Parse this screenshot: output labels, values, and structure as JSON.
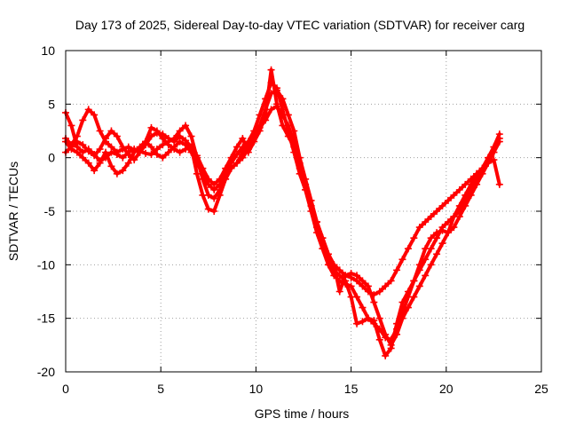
{
  "chart_data": {
    "type": "scatter",
    "title": "Day 173 of 2025, Sidereal Day-to-day VTEC variation (SDTVAR) for receiver carg",
    "xlabel": "GPS time / hours",
    "ylabel": "SDTVAR / TECUs",
    "xlim": [
      0,
      25
    ],
    "ylim": [
      -20,
      10
    ],
    "xticks": [
      "0",
      "5",
      "10",
      "15",
      "20",
      "25"
    ],
    "yticks": [
      "-20",
      "-15",
      "-10",
      "-5",
      "0",
      "5",
      "10"
    ],
    "grid": true,
    "marker": "plus",
    "colors": {
      "series": "#ff0000",
      "grid": "#a0a0a0",
      "frame": "#000000"
    },
    "series": [
      {
        "x": [
          0.0,
          0.3,
          0.6,
          0.9,
          1.2,
          1.5,
          1.8,
          2.1,
          2.4,
          2.7,
          3.0,
          3.3,
          3.6,
          3.9,
          4.2,
          4.5,
          4.8,
          5.1,
          5.4,
          5.7,
          6.0,
          6.3,
          6.6,
          6.9,
          7.2,
          7.5,
          7.8,
          8.1,
          8.4,
          8.7,
          9.0,
          9.3,
          9.6,
          9.9,
          10.2,
          10.5,
          10.8,
          11.1,
          11.4,
          11.7,
          12.0,
          12.3,
          12.6,
          12.9,
          13.2,
          13.5,
          13.8,
          14.1,
          14.4,
          14.7,
          15.0,
          15.3,
          15.6,
          15.9,
          16.2,
          16.5,
          16.8,
          17.1,
          17.4,
          17.7,
          18.0,
          18.3,
          18.6,
          18.9,
          19.2,
          19.5,
          19.8,
          20.1,
          20.4,
          20.7,
          21.0,
          21.3,
          21.6,
          21.9,
          22.2,
          22.5,
          22.8
        ],
        "y": [
          1.8,
          1.2,
          2.0,
          3.5,
          4.5,
          4.0,
          2.5,
          1.5,
          1.0,
          0.5,
          0.8,
          1.0,
          0.7,
          0.5,
          1.2,
          2.0,
          2.3,
          2.2,
          1.8,
          1.5,
          2.0,
          1.6,
          1.0,
          -1.5,
          -3.5,
          -4.8,
          -5.0,
          -3.5,
          -2.0,
          -1.0,
          -0.5,
          0.5,
          1.5,
          2.5,
          4.0,
          5.5,
          7.0,
          6.5,
          4.5,
          2.5,
          0.5,
          -1.5,
          -3.0,
          -4.5,
          -6.0,
          -7.5,
          -9.0,
          -10.0,
          -10.5,
          -11.0,
          -11.2,
          -11.5,
          -12.0,
          -12.5,
          -12.8,
          -12.5,
          -12.0,
          -11.5,
          -10.5,
          -9.5,
          -8.5,
          -7.5,
          -6.5,
          -6.0,
          -5.5,
          -5.0,
          -4.5,
          -4.0,
          -3.5,
          -3.0,
          -2.5,
          -2.0,
          -1.5,
          -1.0,
          -0.5,
          0.5,
          1.5
        ]
      },
      {
        "x": [
          0.0,
          0.3,
          0.6,
          0.9,
          1.2,
          1.5,
          1.8,
          2.1,
          2.4,
          2.7,
          3.0,
          3.3,
          3.6,
          3.9,
          4.2,
          4.5,
          4.8,
          5.1,
          5.4,
          5.7,
          6.0,
          6.3,
          6.6,
          6.9,
          7.2,
          7.5,
          7.8,
          8.1,
          8.4,
          8.7,
          9.0,
          9.3,
          9.6,
          9.9,
          10.2,
          10.5,
          10.8,
          11.1,
          11.4,
          11.7,
          12.0,
          12.3,
          12.6,
          12.9,
          13.2,
          13.5,
          13.8,
          14.1,
          14.4,
          14.7,
          15.0,
          15.3,
          15.6,
          15.9,
          16.2,
          16.5,
          16.8,
          17.1,
          17.4,
          17.7,
          18.0,
          18.3,
          18.6,
          18.9,
          19.2,
          19.5,
          19.8,
          20.1,
          20.4,
          20.7,
          21.0,
          21.3,
          21.6,
          21.9,
          22.2,
          22.5,
          22.8
        ],
        "y": [
          4.2,
          3.0,
          1.0,
          0.5,
          0.8,
          0.3,
          -0.3,
          0.0,
          0.5,
          0.3,
          0.0,
          0.5,
          0.8,
          0.6,
          0.4,
          0.3,
          0.8,
          1.2,
          1.5,
          1.8,
          2.5,
          3.0,
          2.0,
          0.0,
          -2.0,
          -3.5,
          -3.8,
          -3.0,
          -2.0,
          -1.0,
          -0.5,
          0.0,
          0.8,
          2.0,
          3.0,
          4.5,
          6.0,
          6.3,
          5.5,
          4.0,
          2.5,
          0.0,
          -2.0,
          -4.0,
          -6.0,
          -7.5,
          -9.0,
          -10.0,
          -12.5,
          -11.0,
          -10.8,
          -11.0,
          -11.5,
          -12.0,
          -13.5,
          -15.0,
          -16.5,
          -17.5,
          -16.5,
          -15.0,
          -14.0,
          -13.0,
          -12.0,
          -11.0,
          -10.0,
          -9.0,
          -8.0,
          -7.0,
          -6.5,
          -5.5,
          -4.5,
          -3.5,
          -2.5,
          -1.5,
          -0.5,
          0.5,
          1.8
        ]
      },
      {
        "x": [
          0.0,
          0.3,
          0.6,
          0.9,
          1.2,
          1.5,
          1.8,
          2.1,
          2.4,
          2.7,
          3.0,
          3.3,
          3.6,
          3.9,
          4.2,
          4.5,
          4.8,
          5.1,
          5.4,
          5.7,
          6.0,
          6.3,
          6.6,
          6.9,
          7.2,
          7.5,
          7.8,
          8.1,
          8.4,
          8.7,
          9.0,
          9.3,
          9.6,
          9.9,
          10.2,
          10.5,
          10.8,
          11.1,
          11.4,
          11.7,
          12.0,
          12.3,
          12.6,
          12.9,
          13.2,
          13.5,
          13.8,
          14.1,
          14.4,
          14.7,
          15.0,
          15.3,
          15.6,
          15.9,
          16.2,
          16.5,
          16.8,
          17.1,
          17.4,
          17.7,
          18.0,
          18.3,
          18.6,
          18.9,
          19.2,
          19.5,
          19.8,
          20.1,
          20.4,
          20.7,
          21.0,
          21.3,
          21.6,
          21.9,
          22.2,
          22.5,
          22.8
        ],
        "y": [
          1.5,
          0.8,
          0.5,
          0.0,
          -0.5,
          -1.2,
          -0.5,
          0.5,
          -0.8,
          -1.5,
          -1.2,
          -0.5,
          0.5,
          1.0,
          1.5,
          1.0,
          0.3,
          0.0,
          0.5,
          1.0,
          1.5,
          1.2,
          0.5,
          -0.5,
          -1.5,
          -2.5,
          -3.0,
          -2.5,
          -1.5,
          -0.5,
          0.3,
          1.0,
          1.5,
          2.0,
          2.8,
          3.5,
          4.5,
          4.8,
          4.0,
          3.0,
          1.5,
          -0.5,
          -2.5,
          -4.5,
          -6.5,
          -8.5,
          -10.0,
          -11.0,
          -11.5,
          -11.8,
          -12.0,
          -13.0,
          -14.0,
          -15.0,
          -15.5,
          -16.0,
          -16.8,
          -17.0,
          -16.0,
          -14.5,
          -13.0,
          -11.5,
          -10.5,
          -9.5,
          -8.5,
          -7.5,
          -6.5,
          -6.0,
          -5.5,
          -5.0,
          -4.0,
          -3.0,
          -2.0,
          -1.0,
          0.0,
          1.0,
          2.2
        ]
      },
      {
        "x": [
          0.0,
          0.3,
          0.6,
          0.9,
          1.2,
          1.5,
          1.8,
          2.1,
          2.4,
          2.7,
          3.0,
          3.3,
          3.6,
          3.9,
          4.2,
          4.5,
          4.8,
          5.1,
          5.4,
          5.7,
          6.0,
          6.3,
          6.6,
          6.9,
          7.2,
          7.5,
          7.8,
          8.1,
          8.4,
          8.7,
          9.0,
          9.3,
          9.6,
          9.9,
          10.2,
          10.5,
          10.8,
          11.1,
          11.4,
          11.7,
          12.0,
          12.3,
          12.6,
          12.9,
          13.2,
          13.5,
          13.8,
          14.1,
          14.4,
          14.7,
          15.0,
          15.3,
          15.6,
          15.9,
          16.2,
          16.5,
          16.8,
          17.1,
          17.4,
          17.7,
          18.0,
          18.3,
          18.6,
          18.9,
          19.2,
          19.5,
          19.8,
          20.1,
          20.4,
          20.7,
          21.0,
          21.3,
          21.6,
          21.9,
          22.2,
          22.5,
          22.8
        ],
        "y": [
          0.5,
          1.0,
          1.5,
          1.2,
          0.6,
          0.2,
          0.8,
          1.8,
          2.5,
          2.0,
          1.0,
          0.3,
          -0.2,
          0.5,
          1.5,
          2.8,
          2.5,
          1.8,
          1.2,
          0.8,
          0.5,
          0.8,
          1.0,
          0.2,
          -1.0,
          -2.0,
          -2.5,
          -2.0,
          -1.0,
          0.0,
          1.0,
          1.8,
          0.5,
          1.5,
          2.5,
          4.0,
          8.2,
          5.0,
          3.0,
          2.0,
          1.0,
          -1.0,
          -3.0,
          -5.0,
          -7.0,
          -8.5,
          -9.5,
          -10.5,
          -11.0,
          -11.5,
          -13.0,
          -15.5,
          -15.3,
          -15.0,
          -15.2,
          -17.0,
          -18.5,
          -17.8,
          -15.5,
          -13.5,
          -12.5,
          -11.5,
          -10.0,
          -8.5,
          -7.5,
          -7.0,
          -6.8,
          -7.0,
          -5.5,
          -4.5,
          -3.5,
          -2.5,
          -1.5,
          -1.0,
          -0.5,
          -0.2,
          -2.5
        ]
      }
    ]
  }
}
